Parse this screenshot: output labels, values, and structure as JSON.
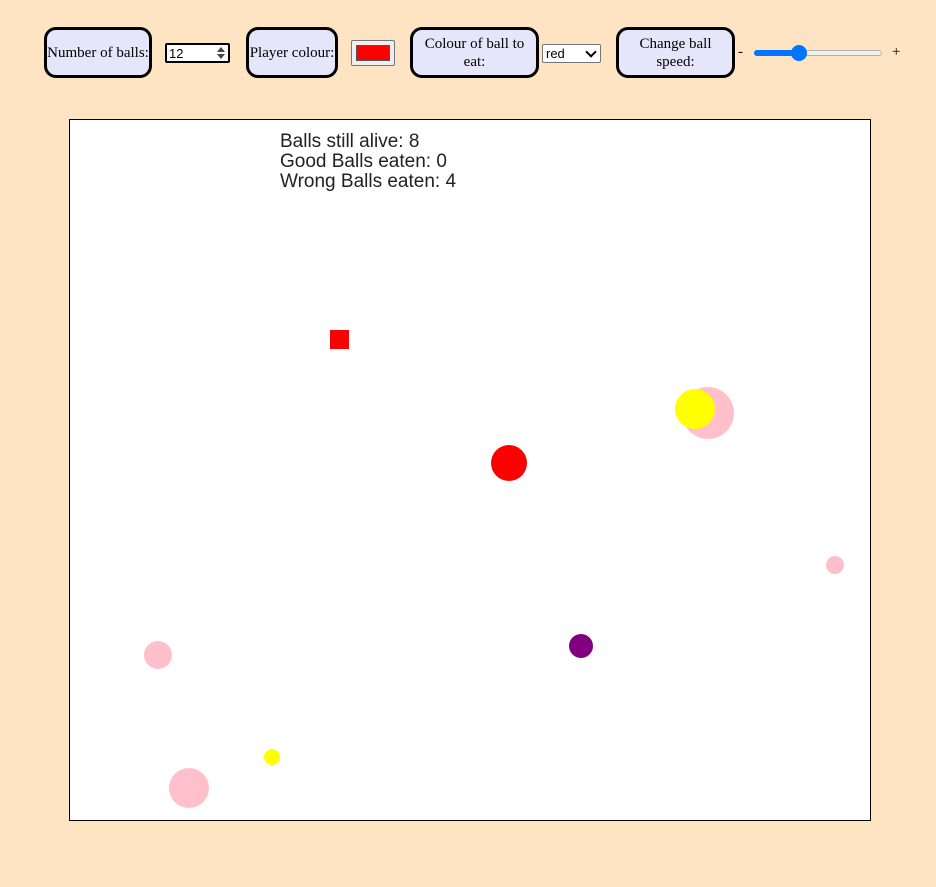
{
  "controls": {
    "num_balls_label": "Number of balls:",
    "num_balls_value": "12",
    "player_colour_label": "Player colour:",
    "player_colour_value": "#ff0000",
    "eat_colour_label": "Colour of ball to eat:",
    "eat_colour_value": "red",
    "speed_label": "Change ball speed:",
    "speed_minus": "-",
    "speed_plus": "+",
    "speed_level": 0.33
  },
  "stats": {
    "alive": "Balls still alive: 8",
    "good": "Good Balls eaten: 0",
    "wrong": "Wrong Balls eaten: 4"
  },
  "colors": {
    "background": "#ffe4c4",
    "label_box": "#e6e6fa",
    "slider_accent": "#0075ff"
  },
  "game": {
    "player_color": "red",
    "balls": [
      {
        "color": "pink"
      },
      {
        "color": "yellow"
      },
      {
        "color": "red"
      },
      {
        "color": "pink"
      },
      {
        "color": "purple"
      },
      {
        "color": "pink"
      },
      {
        "color": "yellow"
      },
      {
        "color": "pink"
      }
    ]
  }
}
